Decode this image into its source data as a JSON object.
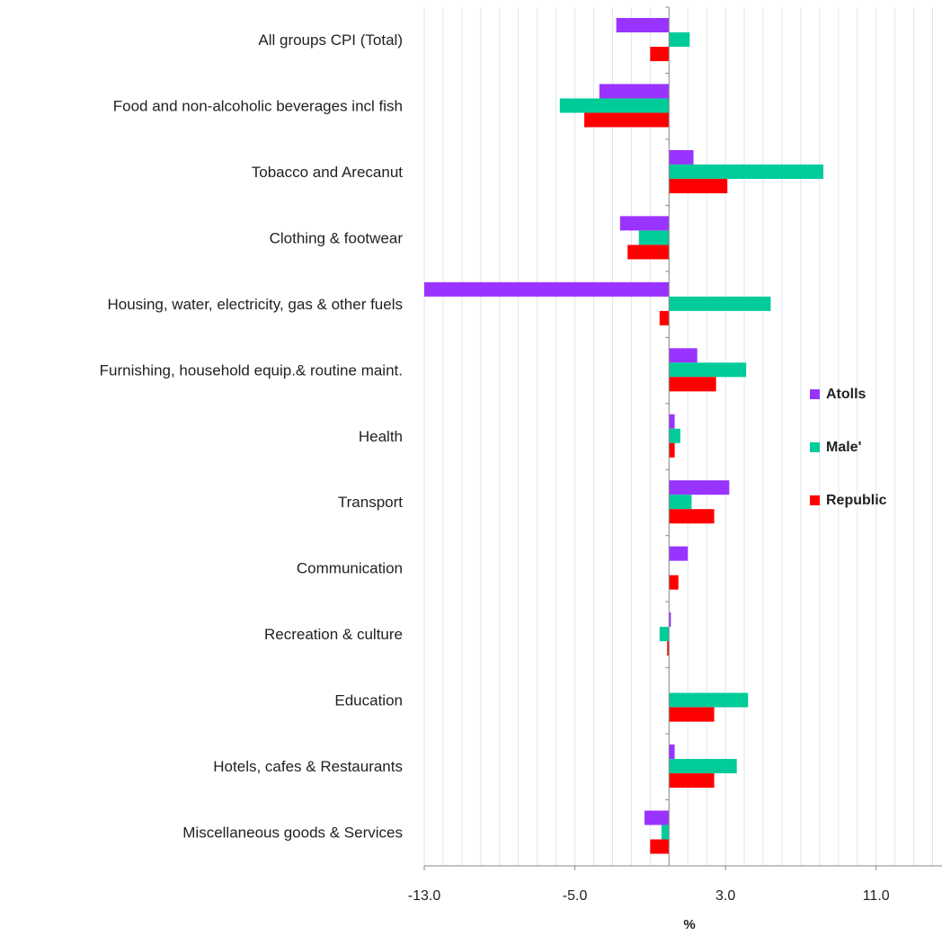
{
  "chart_data": {
    "type": "bar",
    "orientation": "horizontal",
    "categories": [
      "All groups CPI (Total)",
      "Food and non-alcoholic beverages incl fish",
      "Tobacco and Arecanut",
      "Clothing & footwear",
      "Housing, water, electricity, gas & other fuels",
      "Furnishing, household equip.& routine maint.",
      "Health",
      "Transport",
      "Communication",
      "Recreation & culture",
      "Education",
      "Hotels, cafes & Restaurants",
      "Miscellaneous goods & Services"
    ],
    "series": [
      {
        "name": "Atolls",
        "color": "#9933FF",
        "values": [
          -2.8,
          -3.7,
          1.3,
          -2.6,
          -13.5,
          1.5,
          0.3,
          3.2,
          1.0,
          0.1,
          0.0,
          0.3,
          -1.3
        ]
      },
      {
        "name": "Male'",
        "color": "#00CC99",
        "values": [
          1.1,
          -5.8,
          8.2,
          -1.6,
          5.4,
          4.1,
          0.6,
          1.2,
          0.0,
          -0.5,
          4.2,
          3.6,
          -0.4
        ]
      },
      {
        "name": "Republic",
        "color": "#FF0000",
        "values": [
          -1.0,
          -4.5,
          3.1,
          -2.2,
          -0.5,
          2.5,
          0.3,
          2.4,
          0.5,
          -0.1,
          2.4,
          2.4,
          -1.0
        ]
      }
    ],
    "xlim": [
      -13.0,
      14.5
    ],
    "xticks": [
      -13.0,
      -5.0,
      3.0,
      11.0
    ],
    "xtick_labels": [
      "-13.0",
      "-5.0",
      "3.0",
      "11.0"
    ],
    "xlabel": "%",
    "ylabel": "",
    "title": "",
    "grid": "vertical minor gridlines",
    "legend_placement": "right"
  }
}
